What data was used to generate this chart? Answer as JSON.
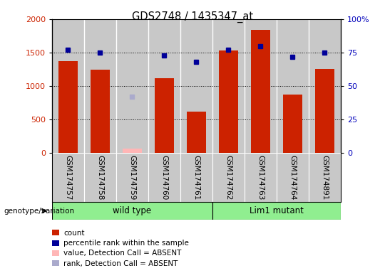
{
  "title": "GDS2748 / 1435347_at",
  "samples": [
    "GSM174757",
    "GSM174758",
    "GSM174759",
    "GSM174760",
    "GSM174761",
    "GSM174762",
    "GSM174763",
    "GSM174764",
    "GSM174891"
  ],
  "counts": [
    1370,
    1240,
    null,
    1120,
    620,
    1530,
    1840,
    870,
    1250
  ],
  "absent_count": [
    null,
    null,
    60,
    null,
    null,
    null,
    null,
    null,
    null
  ],
  "percentile_ranks": [
    77,
    75,
    null,
    73,
    68,
    77,
    80,
    72,
    75
  ],
  "absent_rank": [
    null,
    null,
    42,
    null,
    null,
    null,
    null,
    null,
    null
  ],
  "ylim_left": [
    0,
    2000
  ],
  "ylim_right": [
    0,
    100
  ],
  "yticks_left": [
    0,
    500,
    1000,
    1500,
    2000
  ],
  "yticks_right": [
    0,
    25,
    50,
    75,
    100
  ],
  "ytick_labels_left": [
    "0",
    "500",
    "1000",
    "1500",
    "2000"
  ],
  "ytick_labels_right": [
    "0",
    "25",
    "50",
    "75",
    "100%"
  ],
  "groups": [
    {
      "label": "wild type",
      "start": 0,
      "end": 4
    },
    {
      "label": "Lim1 mutant",
      "start": 5,
      "end": 8
    }
  ],
  "bar_color": "#CC2200",
  "absent_bar_color": "#FFB6B6",
  "rank_color": "#000099",
  "absent_rank_color": "#AAAACC",
  "col_bg_color": "#C8C8C8",
  "annotation_label": "genotype/variation",
  "legend_items": [
    {
      "label": "count",
      "color": "#CC2200"
    },
    {
      "label": "percentile rank within the sample",
      "color": "#000099"
    },
    {
      "label": "value, Detection Call = ABSENT",
      "color": "#FFB6B6"
    },
    {
      "label": "rank, Detection Call = ABSENT",
      "color": "#AAAACC"
    }
  ]
}
